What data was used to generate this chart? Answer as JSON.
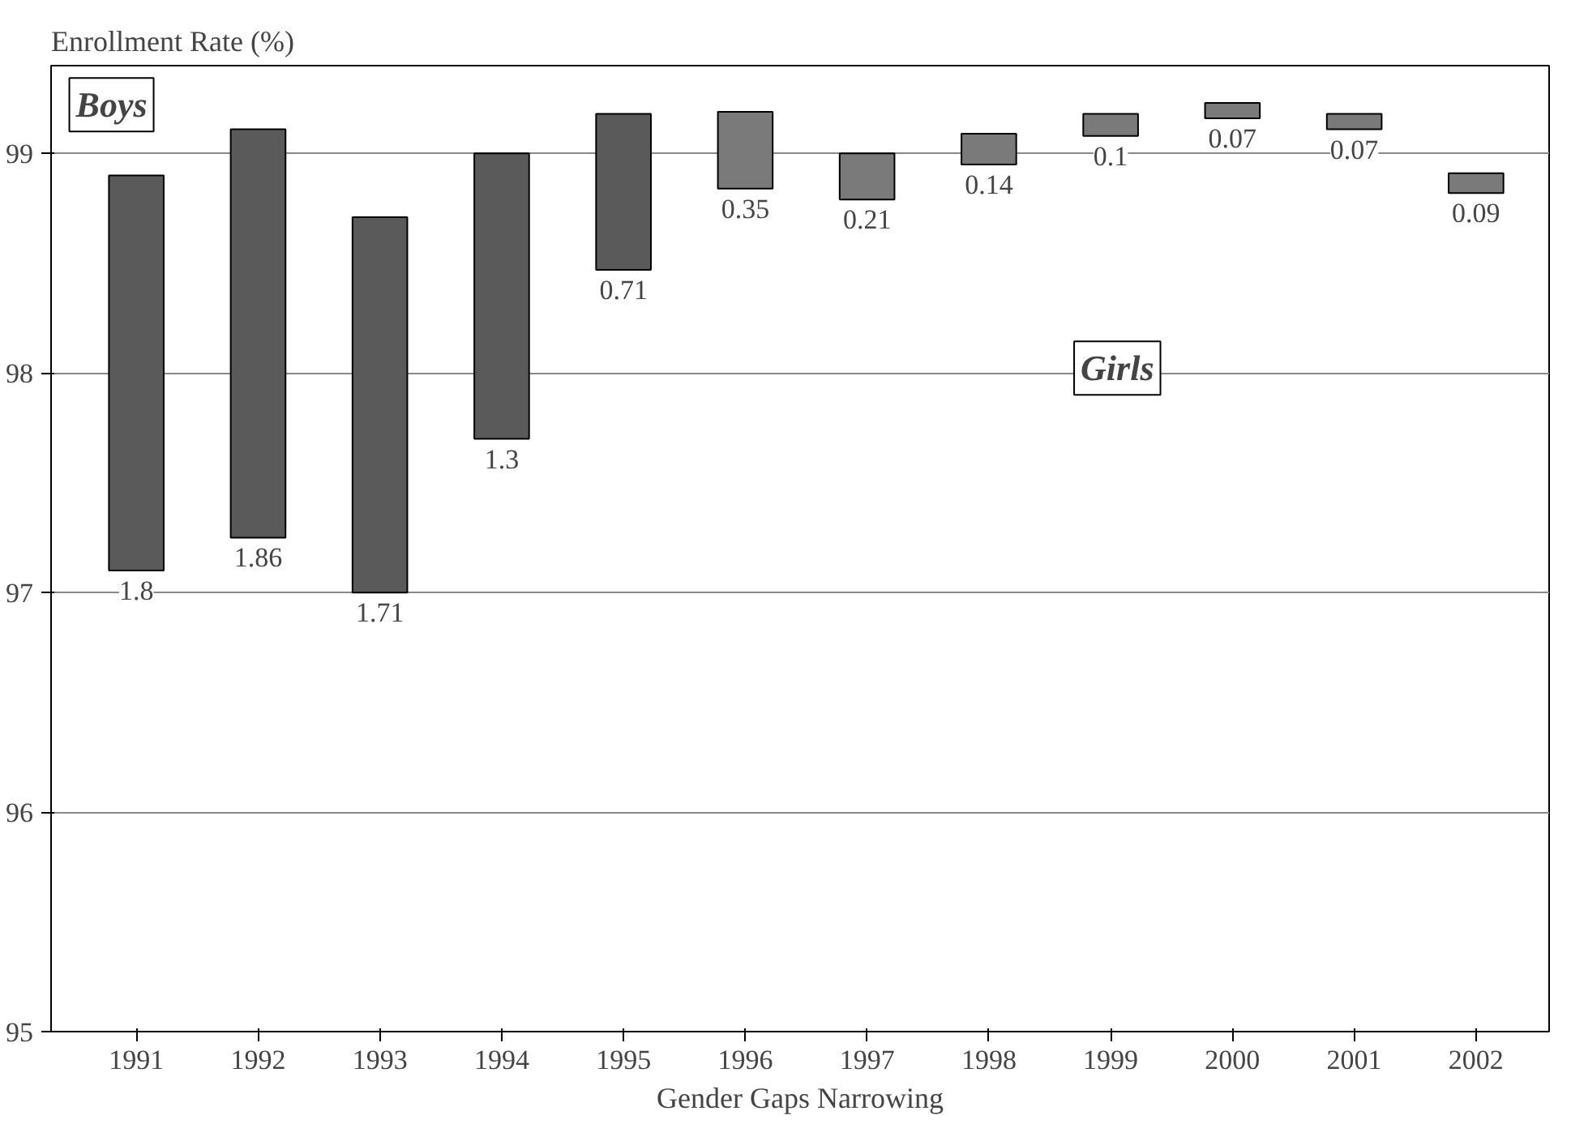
{
  "chart_data": {
    "type": "bar",
    "ylabel": "Enrollment Rate (%)",
    "xlabel": "Gender Gaps Narrowing",
    "categories": [
      "1991",
      "1992",
      "1993",
      "1994",
      "1995",
      "1996",
      "1997",
      "1998",
      "1999",
      "2000",
      "2001",
      "2002"
    ],
    "values": [
      1.8,
      1.86,
      1.71,
      1.3,
      0.71,
      0.35,
      0.21,
      0.14,
      0.1,
      0.07,
      0.07,
      0.09
    ],
    "base": [
      97.1,
      97.25,
      97.0,
      97.7,
      98.47,
      98.84,
      98.79,
      98.95,
      99.08,
      99.16,
      99.11,
      98.82
    ],
    "colors": [
      "#5a5a5a",
      "#5a5a5a",
      "#5a5a5a",
      "#5a5a5a",
      "#5a5a5a",
      "#7a7a7a",
      "#7a7a7a",
      "#7a7a7a",
      "#7a7a7a",
      "#7a7a7a",
      "#7a7a7a",
      "#7a7a7a"
    ],
    "data_labels": true,
    "annotations": [
      "Boys",
      "Girls"
    ],
    "ylim": [
      95,
      99.4
    ],
    "yticks": [
      95,
      96,
      97,
      98,
      99
    ],
    "grid": "y"
  }
}
